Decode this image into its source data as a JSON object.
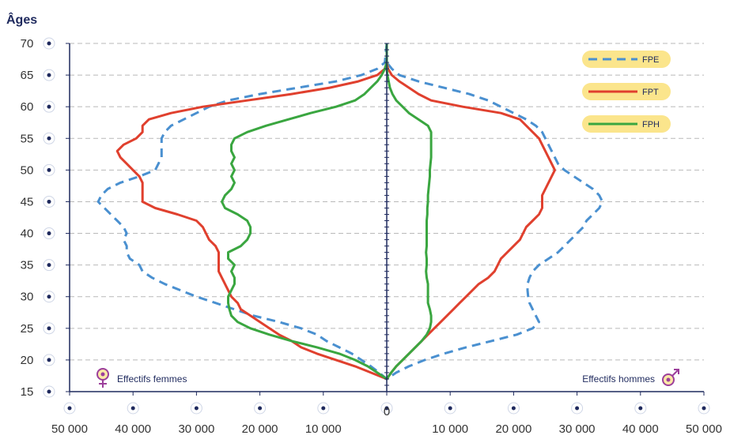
{
  "chart_data": {
    "type": "line",
    "ylabel": "Âges",
    "y_ticks": [
      15,
      20,
      25,
      30,
      35,
      40,
      45,
      50,
      55,
      60,
      65,
      70
    ],
    "x_tick_labels": [
      "50 000",
      "40 000",
      "30 000",
      "20 000",
      "10 000",
      "0",
      "10 000",
      "20 000",
      "30 000",
      "40 000",
      "50 000"
    ],
    "xlim": [
      -50000,
      50000
    ],
    "ylim": [
      15,
      70
    ],
    "caption_left": "Effectifs femmes",
    "caption_right": "Effectifs hommes",
    "grid": "horizontal dashed",
    "legend_position": "top-right",
    "series": [
      {
        "name": "FPE",
        "color": "#4a90d0",
        "dash": "dashed",
        "women": [
          [
            17,
            0
          ],
          [
            18,
            1200
          ],
          [
            19,
            2500
          ],
          [
            20,
            4000
          ],
          [
            21,
            5500
          ],
          [
            22,
            7500
          ],
          [
            23,
            9500
          ],
          [
            24,
            11000
          ],
          [
            25,
            13500
          ],
          [
            26,
            17000
          ],
          [
            27,
            21000
          ],
          [
            28,
            24000
          ],
          [
            29,
            27000
          ],
          [
            30,
            30000
          ],
          [
            31,
            32500
          ],
          [
            32,
            35000
          ],
          [
            33,
            37000
          ],
          [
            34,
            38500
          ],
          [
            35,
            39000
          ],
          [
            36,
            40500
          ],
          [
            37,
            41000
          ],
          [
            38,
            41000
          ],
          [
            39,
            41500
          ],
          [
            40,
            41000
          ],
          [
            41,
            41500
          ],
          [
            42,
            42500
          ],
          [
            43,
            43500
          ],
          [
            44,
            44500
          ],
          [
            45,
            45500
          ],
          [
            46,
            45000
          ],
          [
            47,
            44000
          ],
          [
            48,
            42000
          ],
          [
            49,
            39000
          ],
          [
            50,
            36500
          ],
          [
            51,
            36000
          ],
          [
            52,
            35500
          ],
          [
            53,
            35500
          ],
          [
            54,
            35500
          ],
          [
            55,
            35500
          ],
          [
            56,
            35000
          ],
          [
            57,
            34000
          ],
          [
            58,
            32000
          ],
          [
            59,
            30000
          ],
          [
            60,
            28000
          ],
          [
            61,
            25000
          ],
          [
            62,
            20000
          ],
          [
            63,
            14000
          ],
          [
            64,
            8000
          ],
          [
            65,
            4000
          ],
          [
            66,
            1500
          ],
          [
            67,
            300
          ],
          [
            70,
            0
          ]
        ],
        "men": [
          [
            17,
            0
          ],
          [
            18,
            1500
          ],
          [
            19,
            3500
          ],
          [
            20,
            6000
          ],
          [
            21,
            9000
          ],
          [
            22,
            12500
          ],
          [
            23,
            16500
          ],
          [
            24,
            20500
          ],
          [
            25,
            23000
          ],
          [
            26,
            24000
          ],
          [
            27,
            23500
          ],
          [
            28,
            23000
          ],
          [
            29,
            22500
          ],
          [
            30,
            22300
          ],
          [
            31,
            22200
          ],
          [
            32,
            22200
          ],
          [
            33,
            22500
          ],
          [
            34,
            23000
          ],
          [
            35,
            24000
          ],
          [
            36,
            25500
          ],
          [
            37,
            27000
          ],
          [
            38,
            28000
          ],
          [
            39,
            29000
          ],
          [
            40,
            30000
          ],
          [
            41,
            31000
          ],
          [
            42,
            31500
          ],
          [
            43,
            32500
          ],
          [
            44,
            33500
          ],
          [
            45,
            34000
          ],
          [
            46,
            33500
          ],
          [
            47,
            32500
          ],
          [
            48,
            31000
          ],
          [
            49,
            29500
          ],
          [
            50,
            28000
          ],
          [
            51,
            27000
          ],
          [
            52,
            26500
          ],
          [
            53,
            26000
          ],
          [
            54,
            25500
          ],
          [
            55,
            25000
          ],
          [
            56,
            24500
          ],
          [
            57,
            23500
          ],
          [
            58,
            22000
          ],
          [
            59,
            20000
          ],
          [
            60,
            18000
          ],
          [
            61,
            16000
          ],
          [
            62,
            13000
          ],
          [
            63,
            9000
          ],
          [
            64,
            5000
          ],
          [
            65,
            2000
          ],
          [
            66,
            800
          ],
          [
            67,
            0
          ],
          [
            70,
            0
          ]
        ]
      },
      {
        "name": "FPT",
        "color": "#e0402e",
        "dash": "solid",
        "women": [
          [
            17,
            0
          ],
          [
            18,
            2500
          ],
          [
            19,
            5000
          ],
          [
            20,
            8000
          ],
          [
            21,
            11000
          ],
          [
            22,
            13500
          ],
          [
            23,
            15000
          ],
          [
            24,
            17000
          ],
          [
            25,
            18500
          ],
          [
            26,
            20000
          ],
          [
            27,
            21500
          ],
          [
            28,
            23000
          ],
          [
            29,
            23500
          ],
          [
            30,
            24500
          ],
          [
            31,
            25000
          ],
          [
            32,
            25500
          ],
          [
            33,
            26000
          ],
          [
            34,
            26500
          ],
          [
            35,
            26500
          ],
          [
            36,
            26500
          ],
          [
            37,
            26500
          ],
          [
            38,
            27000
          ],
          [
            39,
            28000
          ],
          [
            40,
            28500
          ],
          [
            41,
            29000
          ],
          [
            42,
            30000
          ],
          [
            43,
            33000
          ],
          [
            44,
            36500
          ],
          [
            45,
            38500
          ],
          [
            46,
            38500
          ],
          [
            47,
            38500
          ],
          [
            48,
            38500
          ],
          [
            49,
            39000
          ],
          [
            50,
            40000
          ],
          [
            51,
            41000
          ],
          [
            52,
            42000
          ],
          [
            53,
            42500
          ],
          [
            54,
            41500
          ],
          [
            55,
            39500
          ],
          [
            56,
            38500
          ],
          [
            57,
            38500
          ],
          [
            58,
            37500
          ],
          [
            59,
            34000
          ],
          [
            60,
            29000
          ],
          [
            61,
            22000
          ],
          [
            62,
            15000
          ],
          [
            63,
            9000
          ],
          [
            64,
            4500
          ],
          [
            65,
            1500
          ],
          [
            66,
            300
          ],
          [
            67,
            0
          ],
          [
            70,
            0
          ]
        ],
        "men": [
          [
            17,
            0
          ],
          [
            18,
            700
          ],
          [
            19,
            1500
          ],
          [
            20,
            2500
          ],
          [
            21,
            3500
          ],
          [
            22,
            4500
          ],
          [
            23,
            5500
          ],
          [
            24,
            6500
          ],
          [
            25,
            7500
          ],
          [
            26,
            8500
          ],
          [
            27,
            9500
          ],
          [
            28,
            10500
          ],
          [
            29,
            11500
          ],
          [
            30,
            12500
          ],
          [
            31,
            13500
          ],
          [
            32,
            14500
          ],
          [
            33,
            16000
          ],
          [
            34,
            17000
          ],
          [
            35,
            17500
          ],
          [
            36,
            18000
          ],
          [
            37,
            19000
          ],
          [
            38,
            20000
          ],
          [
            39,
            21000
          ],
          [
            40,
            21500
          ],
          [
            41,
            22000
          ],
          [
            42,
            23000
          ],
          [
            43,
            24000
          ],
          [
            44,
            24500
          ],
          [
            45,
            24500
          ],
          [
            46,
            24500
          ],
          [
            47,
            25000
          ],
          [
            48,
            25500
          ],
          [
            49,
            26000
          ],
          [
            50,
            26500
          ],
          [
            51,
            26000
          ],
          [
            52,
            25500
          ],
          [
            53,
            25000
          ],
          [
            54,
            24500
          ],
          [
            55,
            24000
          ],
          [
            56,
            23000
          ],
          [
            57,
            22000
          ],
          [
            58,
            21000
          ],
          [
            59,
            18000
          ],
          [
            60,
            12000
          ],
          [
            61,
            7000
          ],
          [
            62,
            5000
          ],
          [
            63,
            3500
          ],
          [
            64,
            2000
          ],
          [
            65,
            800
          ],
          [
            66,
            200
          ],
          [
            67,
            0
          ],
          [
            70,
            0
          ]
        ]
      },
      {
        "name": "FPH",
        "color": "#3aa640",
        "dash": "solid",
        "women": [
          [
            17,
            0
          ],
          [
            18,
            1500
          ],
          [
            19,
            3000
          ],
          [
            20,
            5000
          ],
          [
            21,
            7500
          ],
          [
            22,
            11000
          ],
          [
            23,
            15000
          ],
          [
            24,
            18500
          ],
          [
            25,
            21500
          ],
          [
            26,
            23500
          ],
          [
            27,
            24500
          ],
          [
            28,
            24800
          ],
          [
            29,
            25000
          ],
          [
            30,
            25000
          ],
          [
            31,
            24500
          ],
          [
            32,
            24000
          ],
          [
            33,
            24000
          ],
          [
            34,
            24500
          ],
          [
            35,
            24000
          ],
          [
            36,
            25000
          ],
          [
            37,
            25000
          ],
          [
            38,
            23000
          ],
          [
            39,
            22000
          ],
          [
            40,
            21500
          ],
          [
            41,
            21500
          ],
          [
            42,
            22000
          ],
          [
            43,
            23500
          ],
          [
            44,
            25500
          ],
          [
            45,
            26000
          ],
          [
            46,
            25500
          ],
          [
            47,
            24500
          ],
          [
            48,
            24000
          ],
          [
            49,
            24500
          ],
          [
            50,
            24000
          ],
          [
            51,
            24500
          ],
          [
            52,
            24000
          ],
          [
            53,
            24500
          ],
          [
            54,
            24500
          ],
          [
            55,
            24000
          ],
          [
            56,
            22000
          ],
          [
            57,
            19000
          ],
          [
            58,
            15500
          ],
          [
            59,
            12000
          ],
          [
            60,
            8000
          ],
          [
            61,
            5000
          ],
          [
            62,
            3500
          ],
          [
            63,
            2500
          ],
          [
            64,
            1500
          ],
          [
            65,
            800
          ],
          [
            66,
            300
          ],
          [
            67,
            0
          ],
          [
            70,
            0
          ]
        ],
        "men": [
          [
            17,
            0
          ],
          [
            18,
            700
          ],
          [
            19,
            1500
          ],
          [
            20,
            2500
          ],
          [
            21,
            3500
          ],
          [
            22,
            4500
          ],
          [
            23,
            5500
          ],
          [
            24,
            6300
          ],
          [
            25,
            6800
          ],
          [
            26,
            7000
          ],
          [
            27,
            7000
          ],
          [
            28,
            6800
          ],
          [
            29,
            6500
          ],
          [
            30,
            6500
          ],
          [
            31,
            6500
          ],
          [
            32,
            6500
          ],
          [
            33,
            6300
          ],
          [
            34,
            6200
          ],
          [
            35,
            6300
          ],
          [
            36,
            6300
          ],
          [
            37,
            6200
          ],
          [
            38,
            6300
          ],
          [
            39,
            6300
          ],
          [
            40,
            6300
          ],
          [
            41,
            6300
          ],
          [
            42,
            6300
          ],
          [
            43,
            6400
          ],
          [
            44,
            6400
          ],
          [
            45,
            6500
          ],
          [
            46,
            6500
          ],
          [
            47,
            6600
          ],
          [
            48,
            6700
          ],
          [
            49,
            6800
          ],
          [
            50,
            6800
          ],
          [
            51,
            6900
          ],
          [
            52,
            7000
          ],
          [
            53,
            7000
          ],
          [
            54,
            7000
          ],
          [
            55,
            7000
          ],
          [
            56,
            7000
          ],
          [
            57,
            6500
          ],
          [
            58,
            5000
          ],
          [
            59,
            3500
          ],
          [
            60,
            2500
          ],
          [
            61,
            1500
          ],
          [
            62,
            900
          ],
          [
            63,
            500
          ],
          [
            64,
            300
          ],
          [
            65,
            100
          ],
          [
            66,
            0
          ],
          [
            70,
            0
          ]
        ]
      }
    ]
  }
}
